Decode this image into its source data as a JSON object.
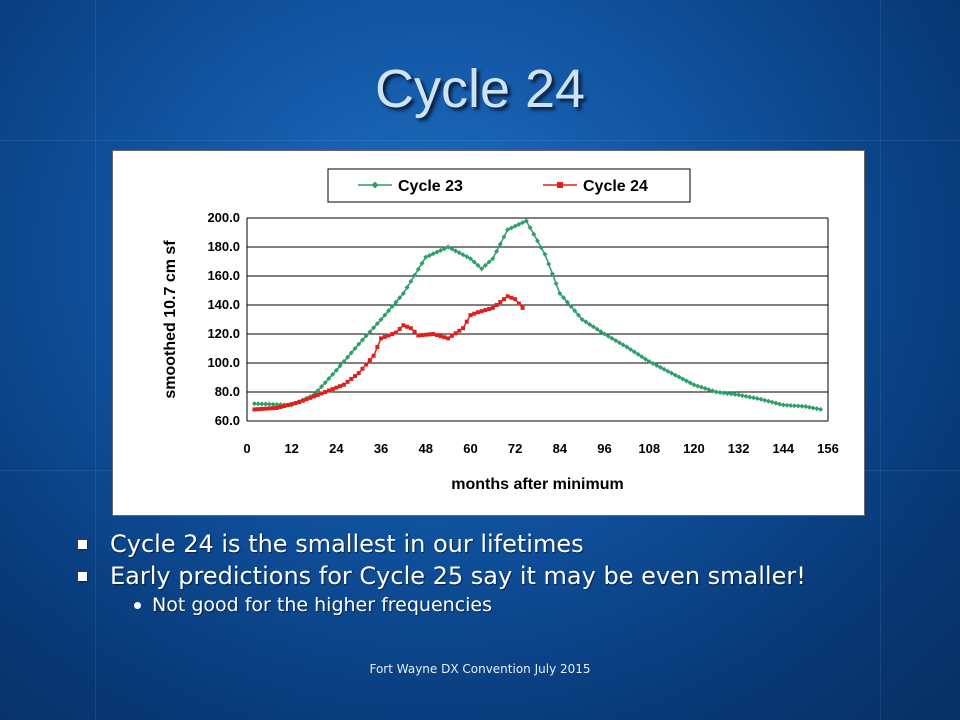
{
  "slide": {
    "title": "Cycle 24",
    "bullets": [
      "Cycle 24 is the smallest in our lifetimes",
      "Early predictions for Cycle 25 say it may be even smaller!"
    ],
    "sub_bullets": [
      "Not good for the higher frequencies"
    ],
    "footer": "Fort Wayne DX Convention July 2015"
  },
  "chart_data": {
    "type": "line",
    "title": "",
    "xlabel": "months after minimum",
    "ylabel": "smoothed 10.7 cm sf",
    "xlim": [
      0,
      156
    ],
    "ylim": [
      60,
      200
    ],
    "x_ticks": [
      0,
      12,
      24,
      36,
      48,
      60,
      72,
      84,
      96,
      108,
      120,
      132,
      144,
      156
    ],
    "y_ticks": [
      "60.0",
      "80.0",
      "100.0",
      "120.0",
      "140.0",
      "160.0",
      "180.0",
      "200.0"
    ],
    "grid": "horizontal",
    "legend": "top",
    "series": [
      {
        "name": "Cycle 23",
        "color": "#2e9e6b",
        "marker": "diamond",
        "x": [
          2,
          12,
          18,
          24,
          30,
          36,
          42,
          48,
          54,
          60,
          63,
          66,
          70,
          75,
          80,
          84,
          90,
          96,
          102,
          108,
          114,
          120,
          126,
          132,
          138,
          144,
          150,
          154
        ],
        "y": [
          72,
          71,
          78,
          95,
          113,
          130,
          148,
          173,
          180,
          172,
          165,
          172,
          192,
          198,
          175,
          148,
          130,
          120,
          111,
          101,
          93,
          85,
          80,
          78,
          75,
          71,
          70,
          68
        ]
      },
      {
        "name": "Cycle 24",
        "color": "#e0201c",
        "marker": "square",
        "x": [
          2,
          8,
          14,
          20,
          26,
          30,
          34,
          36,
          40,
          42,
          44,
          46,
          50,
          54,
          58,
          60,
          62,
          66,
          70,
          72,
          74
        ],
        "y": [
          68,
          69,
          73,
          79,
          85,
          93,
          105,
          117,
          121,
          126,
          124,
          119,
          120,
          117,
          124,
          133,
          135,
          138,
          146,
          144,
          138
        ]
      }
    ]
  }
}
